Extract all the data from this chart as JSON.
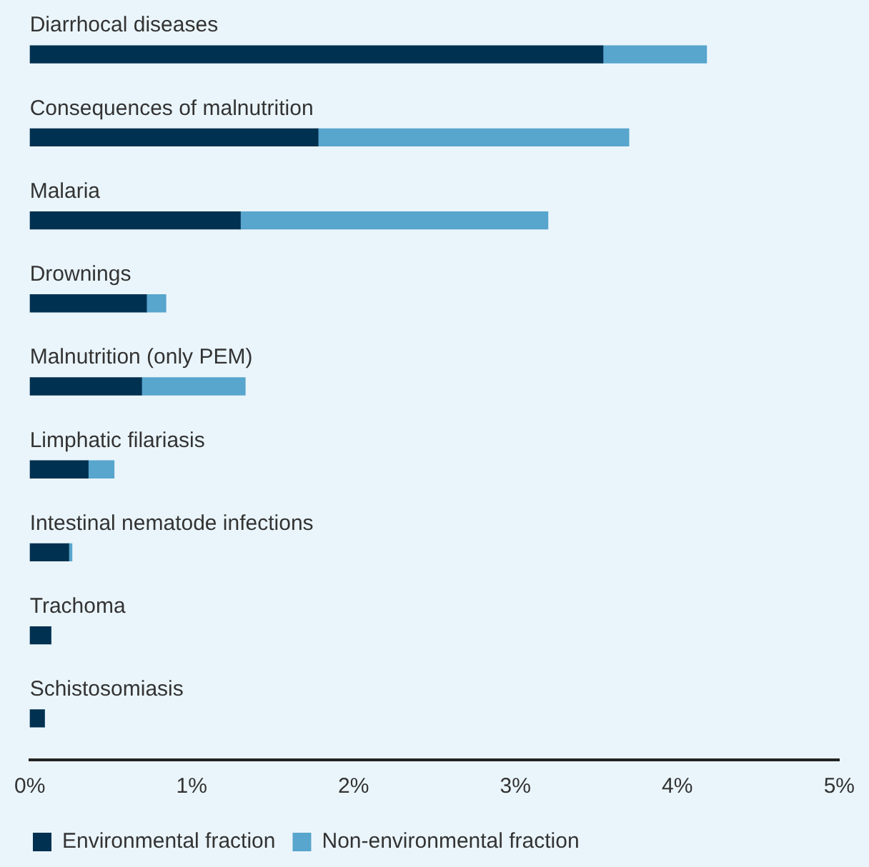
{
  "chart_data": {
    "type": "bar",
    "orientation": "horizontal",
    "stacked": true,
    "categories": [
      "Diarrhocal diseases",
      "Consequences of malnutrition",
      "Malaria",
      "Drownings",
      "Malnutrition (only PEM)",
      "Limphatic filariasis",
      "Intestinal nematode infections",
      "Trachoma",
      "Schistosomiasis"
    ],
    "series": [
      {
        "name": "Environmental fraction",
        "color": "#003150",
        "values": [
          3.54,
          1.78,
          1.3,
          0.72,
          0.69,
          0.36,
          0.24,
          0.13,
          0.09
        ]
      },
      {
        "name": "Non-environmental fraction",
        "color": "#58a5cd",
        "values": [
          0.64,
          1.92,
          1.9,
          0.12,
          0.64,
          0.16,
          0.02,
          0,
          0
        ]
      }
    ],
    "xlim": [
      0,
      5
    ],
    "xticks": [
      {
        "value": 0,
        "label": "0%"
      },
      {
        "value": 1,
        "label": "1%"
      },
      {
        "value": 2,
        "label": "2%"
      },
      {
        "value": 3,
        "label": "3%"
      },
      {
        "value": 4,
        "label": "4%"
      },
      {
        "value": 5,
        "label": "5%"
      }
    ],
    "grid": false,
    "legend": "bottom"
  }
}
